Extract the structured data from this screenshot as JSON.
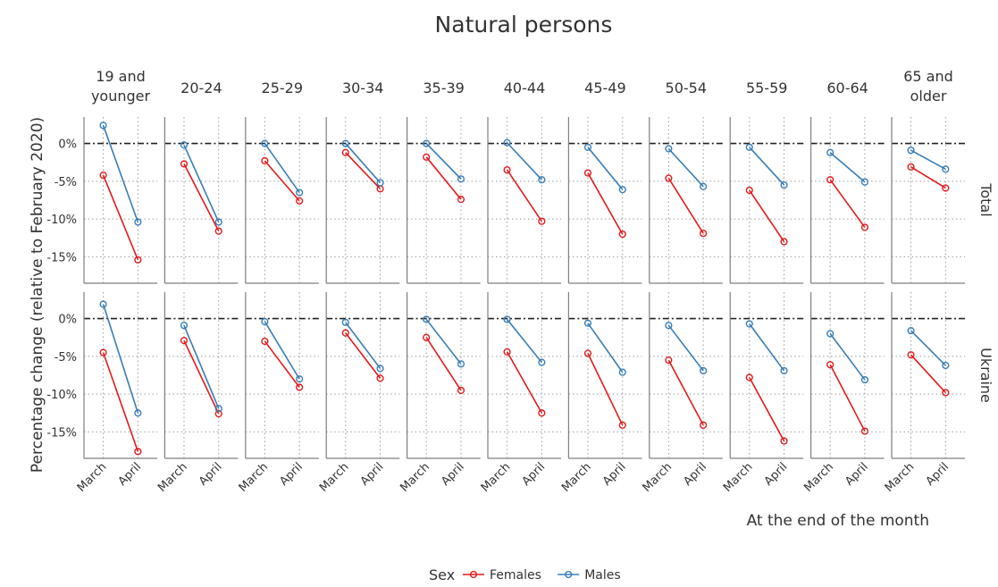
{
  "chart_data": {
    "type": "line",
    "title": "Natural persons",
    "xlabel": "At the end of the month",
    "ylabel": "Percentage change (relative to February 2020)",
    "x": [
      "March",
      "April"
    ],
    "ylim": [
      -18.5,
      3.5
    ],
    "yticks": [
      0,
      -5,
      -10,
      -15
    ],
    "ytick_labels": [
      "0%",
      "-5%",
      "-10%",
      "-15%"
    ],
    "reference_line": 0,
    "grid": true,
    "legend": {
      "title": "Sex",
      "position": "bottom",
      "entries": [
        {
          "name": "Females",
          "color": "#e41a1c"
        },
        {
          "name": "Males",
          "color": "#377eb8"
        }
      ]
    },
    "facet_columns": [
      "19 and younger",
      "20-24",
      "25-29",
      "30-34",
      "35-39",
      "40-44",
      "45-49",
      "50-54",
      "55-59",
      "60-64",
      "65 and older"
    ],
    "facet_rows": [
      "Total",
      "Ukraine"
    ],
    "series": [
      {
        "name": "Females",
        "color": "#e41a1c",
        "values": {
          "Total": [
            [
              -4.2,
              -15.4
            ],
            [
              -2.7,
              -11.6
            ],
            [
              -2.3,
              -7.6
            ],
            [
              -1.2,
              -6.0
            ],
            [
              -1.8,
              -7.4
            ],
            [
              -3.5,
              -10.3
            ],
            [
              -3.9,
              -12.0
            ],
            [
              -4.6,
              -11.9
            ],
            [
              -6.2,
              -13.0
            ],
            [
              -4.8,
              -11.1
            ],
            [
              -3.1,
              -5.9
            ]
          ],
          "Ukraine": [
            [
              -4.5,
              -17.6
            ],
            [
              -2.9,
              -12.6
            ],
            [
              -3.0,
              -9.1
            ],
            [
              -1.9,
              -7.9
            ],
            [
              -2.5,
              -9.5
            ],
            [
              -4.4,
              -12.5
            ],
            [
              -4.6,
              -14.1
            ],
            [
              -5.5,
              -14.1
            ],
            [
              -7.8,
              -16.2
            ],
            [
              -6.1,
              -14.9
            ],
            [
              -4.8,
              -9.8
            ]
          ]
        }
      },
      {
        "name": "Males",
        "color": "#377eb8",
        "values": {
          "Total": [
            [
              2.4,
              -10.4
            ],
            [
              -0.2,
              -10.4
            ],
            [
              0.0,
              -6.5
            ],
            [
              0.0,
              -5.2
            ],
            [
              0.0,
              -4.7
            ],
            [
              0.1,
              -4.8
            ],
            [
              -0.5,
              -6.1
            ],
            [
              -0.7,
              -5.7
            ],
            [
              -0.5,
              -5.5
            ],
            [
              -1.2,
              -5.1
            ],
            [
              -0.9,
              -3.4
            ]
          ],
          "Ukraine": [
            [
              1.9,
              -12.5
            ],
            [
              -0.9,
              -11.9
            ],
            [
              -0.4,
              -8.0
            ],
            [
              -0.5,
              -6.6
            ],
            [
              -0.1,
              -6.0
            ],
            [
              -0.1,
              -5.8
            ],
            [
              -0.6,
              -7.1
            ],
            [
              -0.9,
              -6.9
            ],
            [
              -0.7,
              -6.9
            ],
            [
              -2.0,
              -8.1
            ],
            [
              -1.6,
              -6.2
            ]
          ]
        }
      }
    ]
  }
}
